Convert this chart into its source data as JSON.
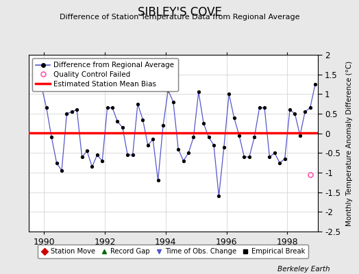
{
  "title": "SIBLEY'S COVE",
  "subtitle": "Difference of Station Temperature Data from Regional Average",
  "ylabel": "Monthly Temperature Anomaly Difference (°C)",
  "bias_value": 0.02,
  "ylim": [
    -2.5,
    2.0
  ],
  "xlim": [
    1989.5,
    1999.0
  ],
  "xticks": [
    1990,
    1992,
    1994,
    1996,
    1998
  ],
  "yticks": [
    -2.5,
    -2.0,
    -1.5,
    -1.0,
    -0.5,
    0.0,
    0.5,
    1.0,
    1.5,
    2.0
  ],
  "ytick_labels": [
    "-2.5",
    "-2",
    "-1.5",
    "-1",
    "-0.5",
    "0",
    "0.5",
    "1",
    "1.5",
    "2"
  ],
  "bg_color": "#e8e8e8",
  "plot_bg_color": "#ffffff",
  "line_color": "#5555cc",
  "dot_color": "#000000",
  "bias_color": "#ff0000",
  "qc_color": "#ff55aa",
  "berkeley_earth_text": "Berkeley Earth",
  "time_series": [
    1989.917,
    1990.083,
    1990.25,
    1990.417,
    1990.583,
    1990.75,
    1990.917,
    1991.083,
    1991.25,
    1991.417,
    1991.583,
    1991.75,
    1991.917,
    1992.083,
    1992.25,
    1992.417,
    1992.583,
    1992.75,
    1992.917,
    1993.083,
    1993.25,
    1993.417,
    1993.583,
    1993.75,
    1993.917,
    1994.083,
    1994.25,
    1994.417,
    1994.583,
    1994.75,
    1994.917,
    1995.083,
    1995.25,
    1995.417,
    1995.583,
    1995.75,
    1995.917,
    1996.083,
    1996.25,
    1996.417,
    1996.583,
    1996.75,
    1996.917,
    1997.083,
    1997.25,
    1997.417,
    1997.583,
    1997.75,
    1997.917,
    1998.083,
    1998.25,
    1998.417,
    1998.583,
    1998.75,
    1998.917
  ],
  "values": [
    1.2,
    0.65,
    -0.1,
    -0.75,
    -0.95,
    0.5,
    0.55,
    0.6,
    -0.6,
    -0.45,
    -0.85,
    -0.55,
    -0.7,
    0.65,
    0.65,
    0.3,
    0.15,
    -0.55,
    -0.55,
    0.75,
    0.35,
    -0.3,
    -0.15,
    -1.2,
    0.2,
    1.1,
    0.8,
    -0.4,
    -0.7,
    -0.5,
    -0.1,
    1.05,
    0.25,
    -0.1,
    -0.3,
    -1.6,
    -0.35,
    1.0,
    0.4,
    -0.05,
    -0.6,
    -0.6,
    -0.1,
    0.65,
    0.65,
    -0.6,
    -0.5,
    -0.75,
    -0.65,
    0.6,
    0.5,
    -0.05,
    0.55,
    0.65,
    1.25
  ],
  "qc_time": 1998.75,
  "qc_val": -1.05
}
